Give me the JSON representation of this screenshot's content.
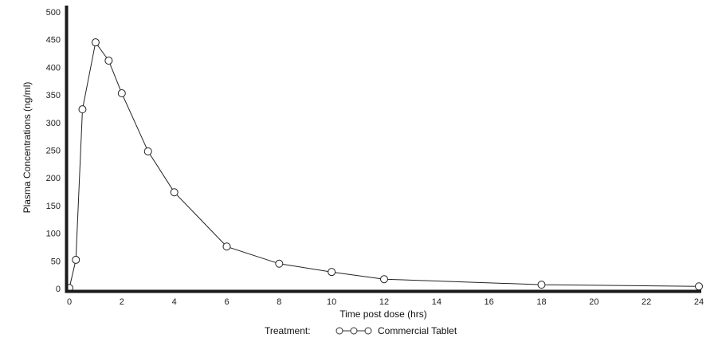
{
  "chart_data": {
    "type": "line",
    "title": "",
    "xlabel": "Time post dose (hrs)",
    "ylabel": "Plasma Concentrations (ng/ml)",
    "xlim": [
      0,
      24
    ],
    "ylim": [
      0,
      500
    ],
    "xticks": [
      0,
      2,
      4,
      6,
      8,
      10,
      12,
      14,
      16,
      18,
      20,
      22,
      24
    ],
    "yticks": [
      0,
      50,
      100,
      150,
      200,
      250,
      300,
      350,
      400,
      450,
      500
    ],
    "grid": false,
    "legend": {
      "position": "bottom",
      "title": "Treatment:"
    },
    "series": [
      {
        "name": "Commercial Tablet",
        "marker": "open-circle",
        "color": "#222222",
        "x": [
          0,
          0.25,
          0.5,
          1,
          1.5,
          2,
          3,
          4,
          6,
          8,
          10,
          12,
          18,
          24
        ],
        "y": [
          1,
          52,
          324,
          445,
          412,
          353,
          248,
          174,
          76,
          45,
          30,
          17,
          7,
          4
        ]
      }
    ]
  }
}
